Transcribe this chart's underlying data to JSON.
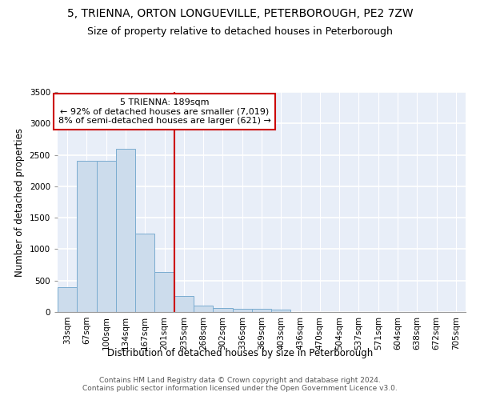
{
  "title": "5, TRIENNA, ORTON LONGUEVILLE, PETERBOROUGH, PE2 7ZW",
  "subtitle": "Size of property relative to detached houses in Peterborough",
  "xlabel": "Distribution of detached houses by size in Peterborough",
  "ylabel": "Number of detached properties",
  "categories": [
    "33sqm",
    "67sqm",
    "100sqm",
    "134sqm",
    "167sqm",
    "201sqm",
    "235sqm",
    "268sqm",
    "302sqm",
    "336sqm",
    "369sqm",
    "403sqm",
    "436sqm",
    "470sqm",
    "504sqm",
    "537sqm",
    "571sqm",
    "604sqm",
    "638sqm",
    "672sqm",
    "705sqm"
  ],
  "values": [
    390,
    2400,
    2400,
    2600,
    1250,
    640,
    250,
    100,
    60,
    55,
    50,
    35,
    0,
    0,
    0,
    0,
    0,
    0,
    0,
    0,
    0
  ],
  "bar_color": "#ccdcec",
  "bar_edge_color": "#7aacd0",
  "vline_x_idx": 5,
  "vline_color": "#cc0000",
  "annotation_text": "5 TRIENNA: 189sqm\n← 92% of detached houses are smaller (7,019)\n8% of semi-detached houses are larger (621) →",
  "annotation_box_color": "#ffffff",
  "annotation_box_edge": "#cc0000",
  "ylim": [
    0,
    3500
  ],
  "yticks": [
    0,
    500,
    1000,
    1500,
    2000,
    2500,
    3000,
    3500
  ],
  "bg_color": "#e8eef8",
  "grid_color": "#ffffff",
  "footer": "Contains HM Land Registry data © Crown copyright and database right 2024.\nContains public sector information licensed under the Open Government Licence v3.0.",
  "title_fontsize": 10,
  "subtitle_fontsize": 9,
  "xlabel_fontsize": 8.5,
  "ylabel_fontsize": 8.5,
  "tick_fontsize": 7.5,
  "footer_fontsize": 6.5,
  "annot_fontsize": 8
}
